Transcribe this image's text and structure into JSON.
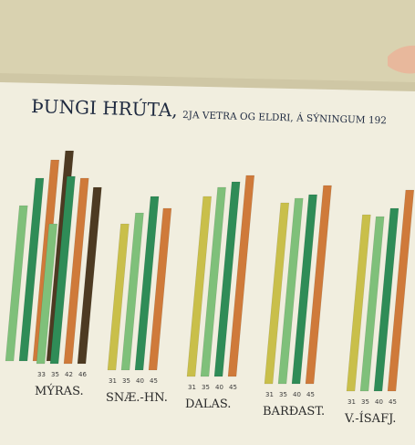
{
  "poster": {
    "title_main": "ÞUNGI HRÚTA,",
    "title_rest": "2JA VETRA OG ELDRI, Á SÝNINGUM 192",
    "background_paper": "#f2efe0",
    "wall_color": "#ddd6b3"
  },
  "chart_data": {
    "type": "bar",
    "groups": [
      {
        "label": "",
        "years": [
          "",
          "",
          "",
          ""
        ],
        "values": [
          null,
          null,
          null,
          null
        ],
        "value_labels": [
          "",
          "",
          "",
          ""
        ]
      },
      {
        "label": "MÝRAS.",
        "years": [
          "33",
          "35",
          "42",
          "46"
        ],
        "value_labels": [
          "",
          "",
          "",
          ""
        ]
      },
      {
        "label": "SNÆ.-HN.",
        "years": [
          "31",
          "35",
          "40",
          "45"
        ],
        "value_labels": [
          "",
          "",
          "",
          ""
        ]
      },
      {
        "label": "DALAS.",
        "years": [
          "31",
          "35",
          "40",
          "45"
        ],
        "value_labels": [
          "",
          "",
          "",
          ""
        ]
      },
      {
        "label": "BARÐAST.",
        "years": [
          "31",
          "35",
          "40",
          "45"
        ],
        "value_labels": [
          "",
          "",
          "",
          ""
        ]
      },
      {
        "label": "V.-ÍSAFJ.",
        "years": [
          "31",
          "35",
          "40",
          "45"
        ],
        "value_labels": [
          "",
          "",
          "",
          ""
        ]
      }
    ],
    "series_colors": [
      "#c9bf4a",
      "#7fc07a",
      "#2f8c57",
      "#cf7a3a",
      "#4d3a22"
    ]
  }
}
